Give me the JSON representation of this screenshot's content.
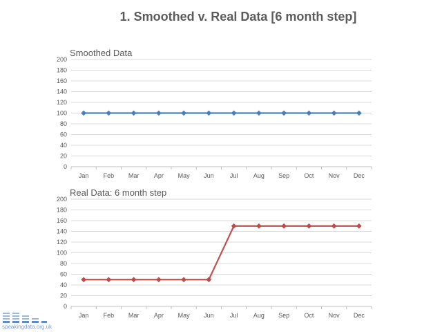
{
  "page": {
    "title": "1. Smoothed v. Real Data [6 month step]",
    "logo_text": "speakingdata.org.uk"
  },
  "colors": {
    "smoothed": "#4f81bd",
    "smoothed_marker": "#4a7ebb",
    "real": "#c0504d",
    "real_marker": "#be4b48",
    "grid": "#d9d9d9",
    "axis": "#bfbfbf"
  },
  "chart_data": [
    {
      "type": "line",
      "title": "Smoothed Data",
      "categories": [
        "Jan",
        "Feb",
        "Mar",
        "Apr",
        "May",
        "Jun",
        "Jul",
        "Aug",
        "Sep",
        "Oct",
        "Nov",
        "Dec"
      ],
      "series": [
        {
          "values": [
            100,
            100,
            100,
            100,
            100,
            100,
            100,
            100,
            100,
            100,
            100,
            100
          ]
        }
      ],
      "ylim": [
        0,
        200
      ],
      "yticks": [
        0,
        20,
        40,
        60,
        80,
        100,
        120,
        140,
        160,
        180,
        200
      ],
      "grid": true,
      "marker": "diamond"
    },
    {
      "type": "line",
      "title": "Real Data: 6 month step",
      "categories": [
        "Jan",
        "Feb",
        "Mar",
        "Apr",
        "May",
        "Jun",
        "Jul",
        "Aug",
        "Sep",
        "Oct",
        "Nov",
        "Dec"
      ],
      "series": [
        {
          "values": [
            50,
            50,
            50,
            50,
            50,
            50,
            150,
            150,
            150,
            150,
            150,
            150
          ]
        }
      ],
      "ylim": [
        0,
        200
      ],
      "yticks": [
        0,
        20,
        40,
        60,
        80,
        100,
        120,
        140,
        160,
        180,
        200
      ],
      "grid": true,
      "marker": "diamond"
    }
  ]
}
